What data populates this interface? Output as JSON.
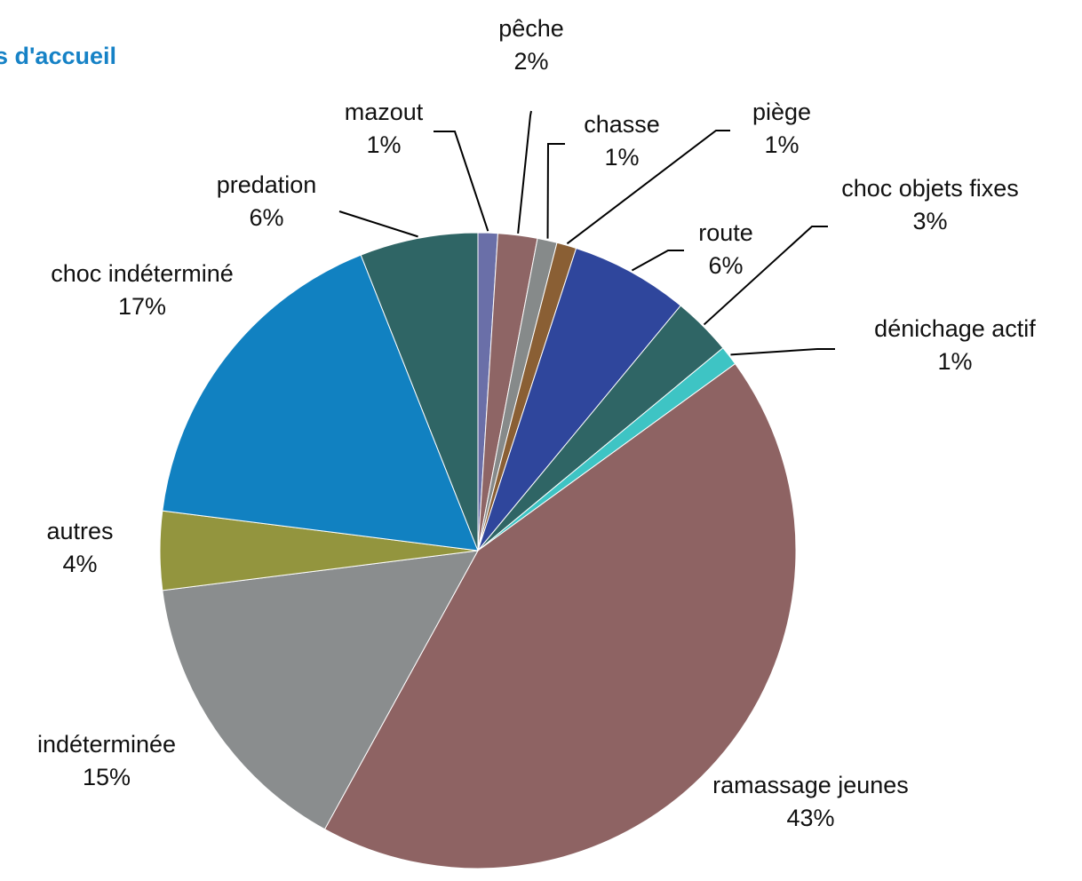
{
  "chart_data": {
    "type": "pie",
    "title": "s d'accueil",
    "categories": [
      "mazout",
      "pêche",
      "chasse",
      "piège",
      "route",
      "choc objets fixes",
      "dénichage actif",
      "ramassage jeunes",
      "indéterminée",
      "autres",
      "choc indéterminé",
      "predation"
    ],
    "values": [
      1,
      2,
      1,
      1,
      6,
      3,
      1,
      43,
      15,
      4,
      17,
      6
    ],
    "value_labels": [
      "1%",
      "2%",
      "1%",
      "1%",
      "6%",
      "3%",
      "1%",
      "43%",
      "15%",
      "4%",
      "17%",
      "6%"
    ],
    "colors": [
      "#6a6fa8",
      "#8e6565",
      "#868a8a",
      "#8a5f34",
      "#2f469c",
      "#2f6565",
      "#3ec4c4",
      "#8e6363",
      "#8a8d8e",
      "#93953e",
      "#1181c1",
      "#2f6565"
    ]
  }
}
